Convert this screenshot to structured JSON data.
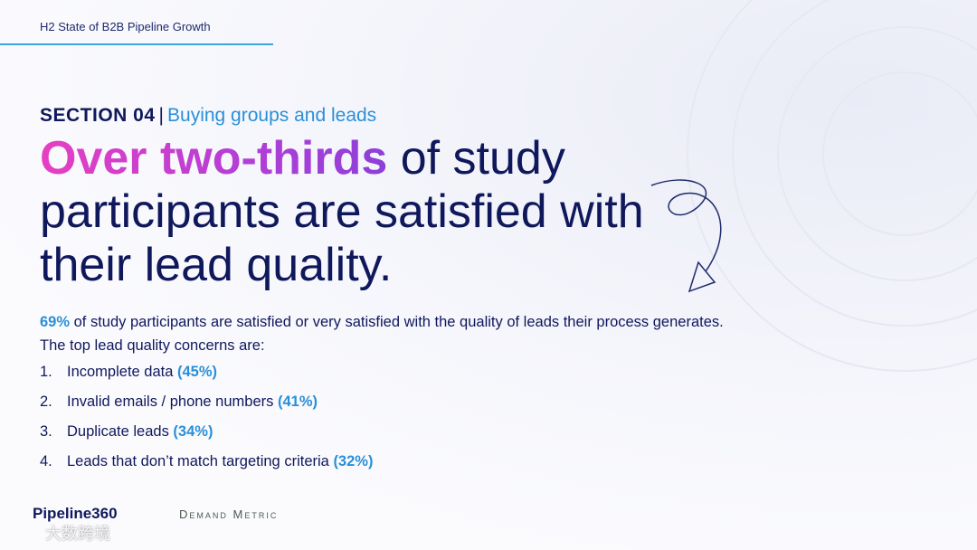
{
  "header": {
    "title": "H2 State of B2B Pipeline Growth"
  },
  "section": {
    "label": "SECTION 04",
    "separator": "|",
    "topic": "Buying groups and leads"
  },
  "headline": {
    "highlight": "Over two-thirds",
    "rest": " of study participants are satisfied with their lead quality."
  },
  "body": {
    "stat": "69%",
    "stat_text": " of study participants are satisfied or very satisfied with the quality of leads their process generates.",
    "intro": "The top lead quality concerns are:"
  },
  "list": [
    {
      "number": "1.",
      "label": "Incomplete data",
      "pct": "(45%)"
    },
    {
      "number": "2.",
      "label": "Invalid emails / phone numbers",
      "pct": "(41%)"
    },
    {
      "number": "3.",
      "label": "Duplicate leads",
      "pct": "(34%)"
    },
    {
      "number": "4.",
      "label": "Leads that don’t match targeting criteria",
      "pct": "(32%)"
    }
  ],
  "footer": {
    "logos": [
      "Pipeline360",
      "Demand Metric"
    ],
    "watermark": "大数跨境"
  }
}
